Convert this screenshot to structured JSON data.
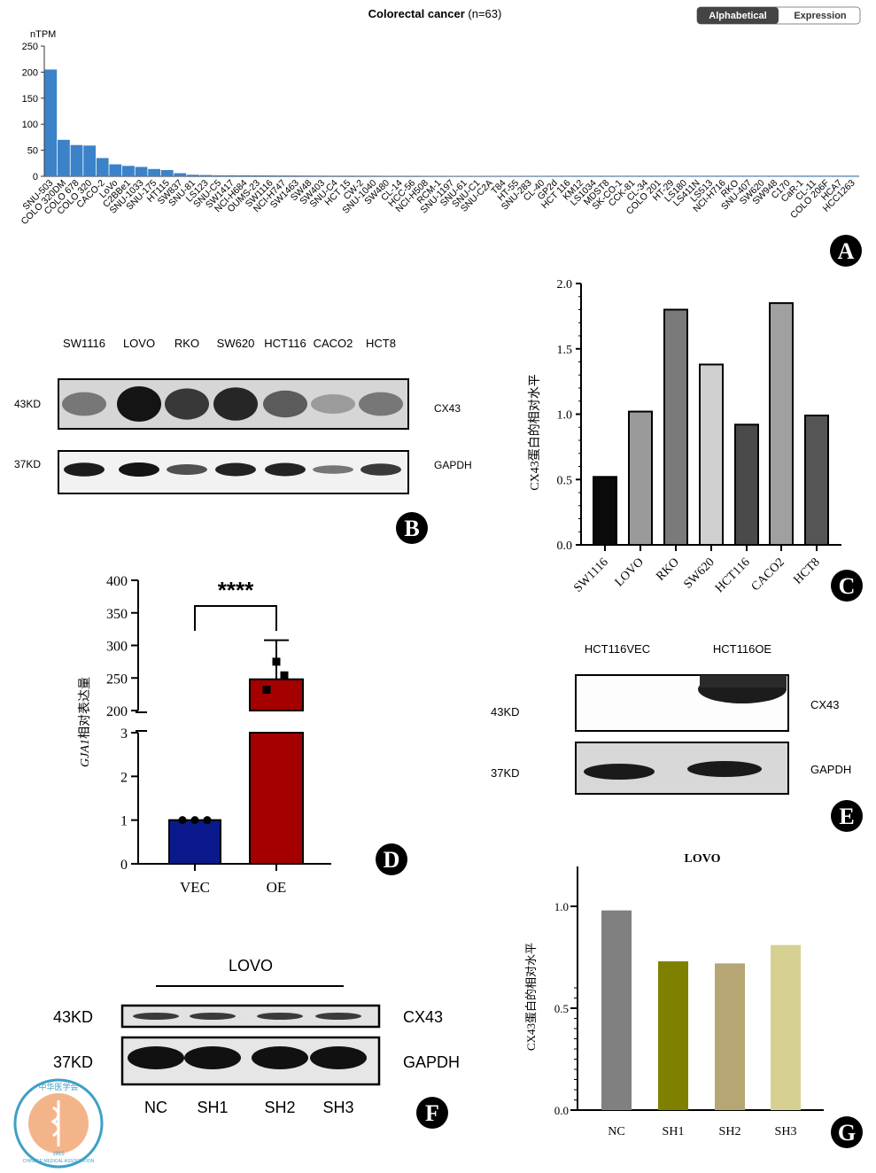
{
  "panels": {
    "A": {
      "title_main": "Colorectal cancer",
      "title_n": "(n=63)",
      "toggle": {
        "alphabetical": "Alphabetical",
        "expression": "Expression"
      },
      "ylabel": "nTPM",
      "letter": "A"
    },
    "B": {
      "lanes": [
        "SW1116",
        "LOVO",
        "RKO",
        "SW620",
        "HCT116",
        "CACO2",
        "HCT8"
      ],
      "rows": [
        {
          "kd": "43KD",
          "protein": "CX43"
        },
        {
          "kd": "37KD",
          "protein": "GAPDH"
        }
      ],
      "letter": "B"
    },
    "C": {
      "ylabel": "CX43蛋白的相对水平",
      "letter": "C"
    },
    "D": {
      "ylabel_italic": "GJA1",
      "ylabel_rest": "相对表达量",
      "significance": "****",
      "letter": "D"
    },
    "E": {
      "lanes": [
        "HCT116VEC",
        "HCT116OE"
      ],
      "rows": [
        {
          "kd": "43KD",
          "protein": "CX43"
        },
        {
          "kd": "37KD",
          "protein": "GAPDH"
        }
      ],
      "letter": "E"
    },
    "F": {
      "group": "LOVO",
      "lanes": [
        "NC",
        "SH1",
        "SH2",
        "SH3"
      ],
      "rows": [
        {
          "kd": "43KD",
          "protein": "CX43"
        },
        {
          "kd": "37KD",
          "protein": "GAPDH"
        }
      ],
      "letter": "F"
    },
    "G": {
      "title": "LOVO",
      "ylabel": "CX43蛋白的相对水平",
      "letter": "G"
    }
  },
  "logo": {
    "text_cn": "中华医学会",
    "text_en": "CHINESE MEDICAL ASSOCIATION",
    "year": "1915"
  },
  "chart_data": [
    {
      "id": "A",
      "type": "bar",
      "title": "Colorectal cancer (n=63)",
      "ylabel": "nTPM",
      "ylim": [
        0,
        250
      ],
      "yticks": [
        0,
        50,
        100,
        150,
        200,
        250
      ],
      "color": "#3b82c9",
      "categories": [
        "SNU-503",
        "COLO 320DM",
        "COLO 678",
        "COLO 320",
        "CACO-2",
        "LoVo",
        "C2BBe1",
        "SNU-1033",
        "SNU-175",
        "HT115",
        "SW837",
        "SNU-81",
        "LS123",
        "SNU-C5",
        "SW1417",
        "NCI-H684",
        "OUMS-23",
        "SW1116",
        "NCI-H747",
        "SW1463",
        "SW48",
        "SW403",
        "SNU-C4",
        "HCT 15",
        "CW-2",
        "SNU-1040",
        "SW480",
        "CL-14",
        "HCC-56",
        "NCI-H508",
        "RCM-1",
        "SNU-1197",
        "SNU-61",
        "SNU-C1",
        "SNU-C2A",
        "T84",
        "HT-55",
        "SNU-283",
        "CL-40",
        "GP2d",
        "HCT 116",
        "KM12",
        "LS1034",
        "MDST8",
        "SK-CO-1",
        "CCK-81",
        "CL-34",
        "COLO 201",
        "HT-29",
        "LS180",
        "LS411N",
        "LS513",
        "NCI-H716",
        "RKO",
        "SNU-407",
        "SW620",
        "SW948",
        "C170",
        "CaR-1",
        "CL-11",
        "COLO 206F",
        "HCA7",
        "HCC1263"
      ],
      "values": [
        205,
        70,
        60,
        59,
        35,
        23,
        20,
        18,
        14,
        12,
        6,
        3,
        2.5,
        2,
        2,
        2,
        1.8,
        1.7,
        1.6,
        1.5,
        1.4,
        1.3,
        1.2,
        1.2,
        1.1,
        1.1,
        1,
        1,
        1,
        0.9,
        0.9,
        0.8,
        0.8,
        0.8,
        0.7,
        0.7,
        0.7,
        0.6,
        0.6,
        0.6,
        0.5,
        0.5,
        0.5,
        0.5,
        0.4,
        0.4,
        0.4,
        0.4,
        0.3,
        0.3,
        0.3,
        0.3,
        0.3,
        0.2,
        0.2,
        0.2,
        0.2,
        0.2,
        0.1,
        0.1,
        0.1,
        0.1,
        0.1
      ]
    },
    {
      "id": "C",
      "type": "bar",
      "ylabel": "CX43蛋白的相对水平",
      "ylim": [
        0,
        2.0
      ],
      "yticks": [
        "0.0",
        "0.5",
        "1.0",
        "1.5",
        "2.0"
      ],
      "categories": [
        "SW1116",
        "LOVO",
        "RKO",
        "SW620",
        "HCT116",
        "CACO2",
        "HCT8"
      ],
      "values": [
        0.52,
        1.02,
        1.8,
        1.38,
        0.92,
        1.85,
        0.99
      ],
      "colors": [
        "#0a0a0a",
        "#9a9a9a",
        "#7a7a7a",
        "#d0d0d0",
        "#4a4a4a",
        "#a0a0a0",
        "#555555"
      ]
    },
    {
      "id": "D",
      "type": "bar",
      "ylabel": "GJA1相对表达量",
      "broken_axis": true,
      "ylim_lower": [
        0,
        3
      ],
      "ylim_upper": [
        200,
        400
      ],
      "yticks_lower": [
        "0",
        "1",
        "2",
        "3"
      ],
      "yticks_upper": [
        "200",
        "250",
        "300",
        "350",
        "400"
      ],
      "categories": [
        "VEC",
        "OE"
      ],
      "values": [
        1.0,
        248
      ],
      "error": [
        0,
        60
      ],
      "colors": [
        "#0a1a8c",
        "#a50000"
      ],
      "points": [
        [
          1.0,
          1.0,
          1.0
        ],
        [
          232,
          275,
          254
        ]
      ]
    },
    {
      "id": "G",
      "type": "bar",
      "title": "LOVO",
      "ylabel": "CX43蛋白的相对水平",
      "ylim": [
        0,
        1.0
      ],
      "yticks": [
        "0.0",
        "0.5",
        "1.0"
      ],
      "categories": [
        "NC",
        "SH1",
        "SH2",
        "SH3"
      ],
      "values": [
        0.98,
        0.73,
        0.72,
        0.81
      ],
      "colors": [
        "#808080",
        "#808000",
        "#b5a673",
        "#d6d192"
      ]
    }
  ]
}
